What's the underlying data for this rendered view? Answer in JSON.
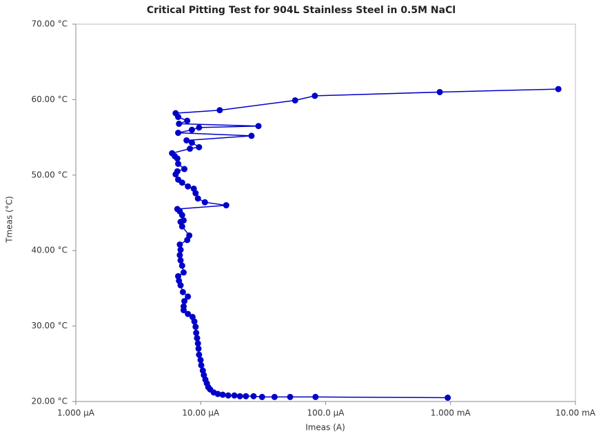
{
  "chart_data": {
    "type": "line",
    "title": "Critical Pitting Test for 904L Stainless Steel in 0.5M NaCl",
    "x_label": "Imeas (A)",
    "y_label": "Tmeas (°C)",
    "xscale": "log",
    "xlim": [
      1e-06,
      0.01
    ],
    "ylim": [
      20,
      70
    ],
    "xticks": [
      {
        "value": 1e-06,
        "label": "1.000 µA"
      },
      {
        "value": 1e-05,
        "label": "10.00 µA"
      },
      {
        "value": 0.0001,
        "label": "100.0 µA"
      },
      {
        "value": 0.001,
        "label": "1.000 mA"
      },
      {
        "value": 0.01,
        "label": "10.00 mA"
      }
    ],
    "yticks": [
      {
        "value": 20,
        "label": "20.00 °C"
      },
      {
        "value": 30,
        "label": "30.00 °C"
      },
      {
        "value": 40,
        "label": "40.00 °C"
      },
      {
        "value": 50,
        "label": "50.00 °C"
      },
      {
        "value": 60,
        "label": "60.00 °C"
      },
      {
        "value": 70,
        "label": "70.00 °C"
      }
    ],
    "series": [
      {
        "color": "#0000c8",
        "x": [
          0.00095,
          8.3e-05,
          5.2e-05,
          3.9e-05,
          3.1e-05,
          2.65e-05,
          2.3e-05,
          2.06e-05,
          1.86e-05,
          1.66e-05,
          1.5e-05,
          1.37e-05,
          1.27e-05,
          1.19e-05,
          1.15e-05,
          1.12e-05,
          1.09e-05,
          1.06e-05,
          1.04e-05,
          1.01e-05,
          9.97e-06,
          9.7e-06,
          9.6e-06,
          9.5e-06,
          9.35e-06,
          9.2e-06,
          9.1e-06,
          8.9e-06,
          8.6e-06,
          7.9e-06,
          7.3e-06,
          7.3e-06,
          7.4e-06,
          7.9e-06,
          7.2e-06,
          6.9e-06,
          6.7e-06,
          6.6e-06,
          7.3e-06,
          7.1e-06,
          6.9e-06,
          6.8e-06,
          6.9e-06,
          6.8e-06,
          7.8e-06,
          8.1e-06,
          7.1e-06,
          6.9e-06,
          7.3e-06,
          7.1e-06,
          6.8e-06,
          6.5e-06,
          1.6e-05,
          1.08e-05,
          9.5e-06,
          9.1e-06,
          8.8e-06,
          7.9e-06,
          7.1e-06,
          6.6e-06,
          6.3e-06,
          6.5e-06,
          7.4e-06,
          6.6e-06,
          6.5e-06,
          6.2e-06,
          5.9e-06,
          8.2e-06,
          9.7e-06,
          8.5e-06,
          7.7e-06,
          2.55e-05,
          6.6e-06,
          8.5e-06,
          9.7e-06,
          2.9e-05,
          6.7e-06,
          7.8e-06,
          6.6e-06,
          6.3e-06,
          1.42e-05,
          5.7e-05,
          8.2e-05,
          0.00082,
          0.0073
        ],
        "values": [
          20.5,
          20.6,
          20.6,
          20.6,
          20.6,
          20.7,
          20.7,
          20.7,
          20.8,
          20.8,
          20.9,
          21.0,
          21.2,
          21.6,
          21.9,
          22.4,
          22.9,
          23.5,
          24.1,
          24.8,
          25.5,
          26.2,
          27.0,
          27.7,
          28.4,
          29.1,
          29.9,
          30.6,
          31.2,
          31.6,
          32.1,
          32.6,
          33.3,
          33.9,
          34.5,
          35.4,
          36.0,
          36.6,
          37.1,
          38.0,
          38.7,
          39.4,
          40.1,
          40.8,
          41.4,
          42.0,
          43.2,
          43.8,
          44.0,
          44.7,
          45.2,
          45.5,
          46.0,
          46.4,
          46.9,
          47.6,
          48.2,
          48.5,
          49.0,
          49.4,
          50.1,
          50.5,
          50.8,
          51.5,
          52.2,
          52.5,
          52.9,
          53.5,
          53.7,
          54.3,
          54.6,
          55.2,
          55.6,
          56.0,
          56.3,
          56.5,
          56.8,
          57.2,
          57.7,
          58.2,
          58.6,
          59.9,
          60.5,
          61.0,
          61.4
        ]
      }
    ]
  }
}
